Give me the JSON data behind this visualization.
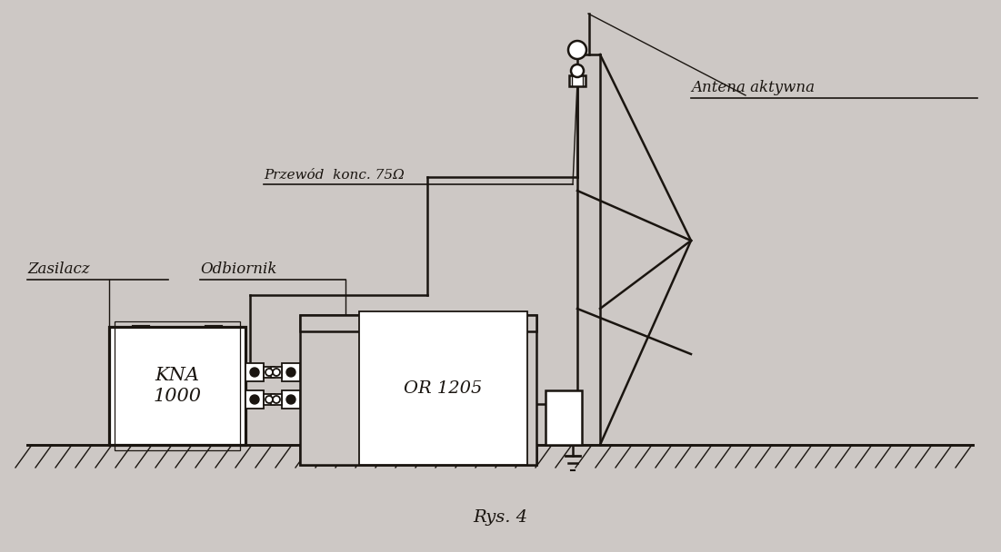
{
  "bg_color": "#cdc8c5",
  "line_color": "#1a1510",
  "title": "Rys. 4",
  "label_antena": "Antena aktywna",
  "label_przewod": "Przewód  konc. 75Ω",
  "label_zasilacz": "Zasilacz",
  "label_odbiornik": "Odbiornik",
  "label_kna": "KNA\n1000",
  "label_or": "OR 1205",
  "fig_width": 11.01,
  "fig_height": 6.08,
  "dpi": 100
}
